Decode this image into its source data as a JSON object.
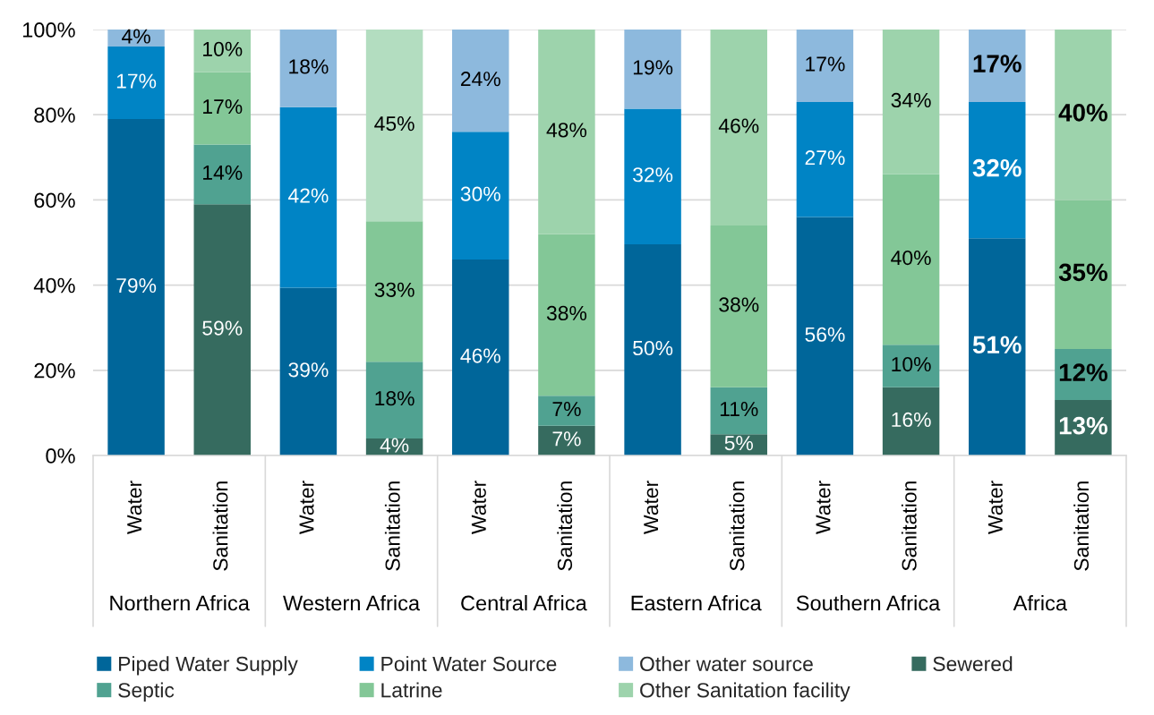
{
  "chart_data": {
    "type": "bar",
    "stacked": true,
    "categories": [
      "Water",
      "Sanitation",
      "Water",
      "Sanitation",
      "Water",
      "Sanitation",
      "Water",
      "Sanitation",
      "Water",
      "Sanitation",
      "Water",
      "Sanitation"
    ],
    "annotations": [
      "Northern Africa",
      "Western Africa",
      "Central Africa",
      "Eastern Africa",
      "Southern Africa",
      "Africa"
    ],
    "ylim": [
      0,
      100
    ],
    "yticks": [
      {
        "value": 0,
        "label": "0%"
      },
      {
        "value": 20,
        "label": "20%"
      },
      {
        "value": 40,
        "label": "40%"
      },
      {
        "value": 60,
        "label": "60%"
      },
      {
        "value": 80,
        "label": "80%"
      },
      {
        "value": 100,
        "label": "100%"
      }
    ],
    "grid": "y",
    "legend": "bottom",
    "series": [
      {
        "name": "Piped Water Supply",
        "color": "#00669a",
        "values": [
          79,
          null,
          39.4,
          null,
          46,
          null,
          49.6,
          null,
          56,
          null,
          51,
          null
        ],
        "value_labels": [
          "79%",
          null,
          "39%",
          null,
          "46%",
          null,
          "50%",
          null,
          "56%",
          null,
          "51%",
          null
        ]
      },
      {
        "name": "Point Water Source",
        "color": "#0084c5",
        "values": [
          17,
          null,
          42.4,
          null,
          30,
          null,
          31.8,
          null,
          27,
          null,
          32,
          null
        ],
        "value_labels": [
          "17%",
          null,
          "42%",
          null,
          "30%",
          null,
          "32%",
          null,
          "27%",
          null,
          "32%",
          null
        ]
      },
      {
        "name": "Other water source",
        "color": "#8db9dd",
        "values": [
          4,
          null,
          18.2,
          null,
          24,
          null,
          18.6,
          null,
          17,
          null,
          17,
          null
        ],
        "value_labels": [
          "4%",
          null,
          "18%",
          null,
          "24%",
          null,
          "19%",
          null,
          "17%",
          null,
          "17%",
          null
        ]
      },
      {
        "name": "Sewered",
        "color": "#366b5f",
        "values": [
          null,
          59,
          null,
          4,
          null,
          7,
          null,
          5,
          null,
          16,
          null,
          13
        ],
        "value_labels": [
          null,
          "59%",
          null,
          "4%",
          null,
          "7%",
          null,
          "5%",
          null,
          "16%",
          null,
          "13%"
        ]
      },
      {
        "name": "Septic",
        "color": "#50a291",
        "values": [
          null,
          14,
          null,
          18,
          null,
          7,
          null,
          11,
          null,
          10,
          null,
          12
        ],
        "value_labels": [
          null,
          "14%",
          null,
          "18%",
          null,
          "7%",
          null,
          "11%",
          null,
          "10%",
          null,
          "12%"
        ]
      },
      {
        "name": "Latrine",
        "color": "#83c797",
        "values": [
          null,
          17,
          null,
          33,
          null,
          38,
          null,
          38,
          null,
          40,
          null,
          35
        ],
        "value_labels": [
          null,
          "17%",
          null,
          "33%",
          null,
          "38%",
          null,
          "38%",
          null,
          "40%",
          null,
          "35%"
        ]
      },
      {
        "name": "Other Sanitation facility",
        "color": "#9dd3ac",
        "colors": [
          null,
          "#9dd3ac",
          null,
          "#b3ddc0",
          null,
          "#9dd3ac",
          null,
          "#9dd3ac",
          null,
          "#9dd3ac",
          null,
          "#9dd3ac"
        ],
        "values": [
          null,
          10,
          null,
          45,
          null,
          48,
          null,
          46,
          null,
          34,
          null,
          40
        ],
        "value_labels": [
          null,
          "10%",
          null,
          "45%",
          null,
          "48%",
          null,
          "46%",
          null,
          "34%",
          null,
          "40%"
        ]
      }
    ]
  }
}
